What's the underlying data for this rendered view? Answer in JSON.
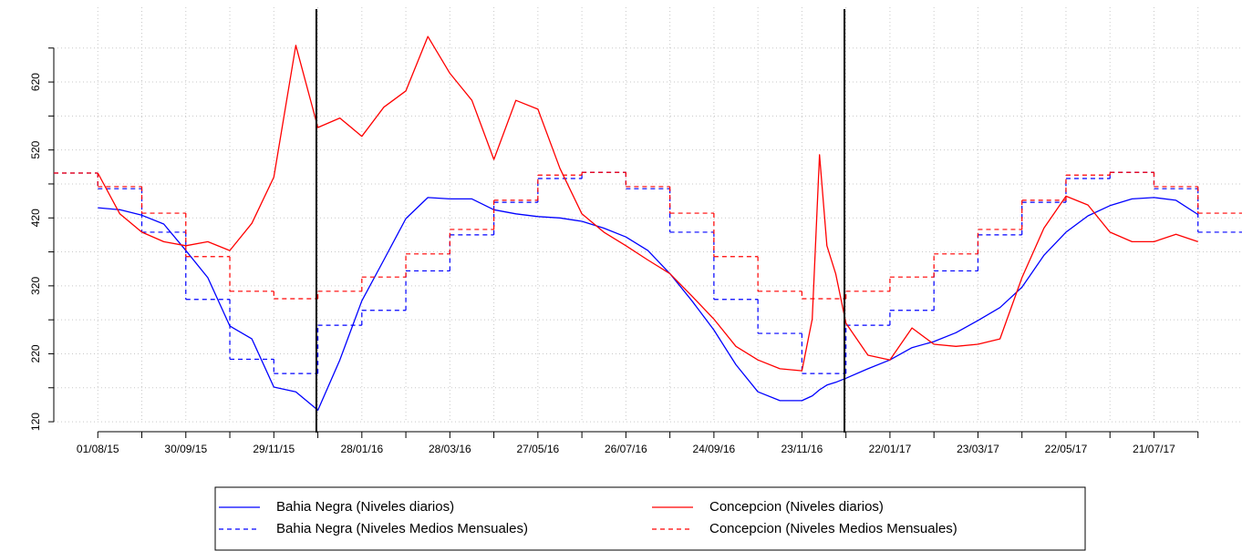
{
  "chart_data": {
    "type": "line",
    "xlim": [
      "02/07/15",
      "19/09/17"
    ],
    "ylim": [
      104,
      730
    ],
    "grid": true,
    "legend": "bottom",
    "xticks": [
      "01/08/15",
      "30/09/15",
      "29/11/15",
      "28/01/16",
      "28/03/16",
      "27/05/16",
      "26/07/16",
      "24/09/16",
      "23/11/16",
      "22/01/17",
      "23/03/17",
      "22/05/17",
      "21/07/17"
    ],
    "minor_xticks": [
      "31/08/15",
      "30/10/15",
      "29/12/15",
      "27/02/16",
      "27/04/16",
      "26/06/16",
      "25/08/16",
      "24/10/16",
      "23/12/16",
      "21/02/17",
      "22/04/17",
      "21/06/17",
      "20/08/17"
    ],
    "yticks": [
      120,
      220,
      320,
      420,
      520,
      620
    ],
    "ygrid": [
      120,
      170,
      220,
      270,
      320,
      370,
      420,
      470,
      520,
      570,
      620,
      670
    ],
    "vlines": [
      "28/12/15",
      "22/12/16"
    ],
    "vline_color": "#000000",
    "x": [
      "01/08/15",
      "16/08/15",
      "31/08/15",
      "15/09/15",
      "30/09/15",
      "15/10/15",
      "30/10/15",
      "14/11/15",
      "29/11/15",
      "14/12/15",
      "29/12/15",
      "13/01/16",
      "28/01/16",
      "12/02/16",
      "27/02/16",
      "13/03/16",
      "28/03/16",
      "12/04/16",
      "27/04/16",
      "12/05/16",
      "27/05/16",
      "11/06/16",
      "26/06/16",
      "11/07/16",
      "26/07/16",
      "10/08/16",
      "25/08/16",
      "09/09/16",
      "24/09/16",
      "09/10/16",
      "24/10/16",
      "08/11/16",
      "23/11/16",
      "30/11/16",
      "05/12/16",
      "10/12/16",
      "16/12/16",
      "23/12/16",
      "07/01/17",
      "22/01/17",
      "06/02/17",
      "21/02/17",
      "08/03/17",
      "23/03/17",
      "07/04/17",
      "22/04/17",
      "07/05/17",
      "22/05/17",
      "06/06/17",
      "21/06/17",
      "06/07/17",
      "21/07/17",
      "05/08/17",
      "20/08/17"
    ],
    "series": [
      {
        "name": "Bahia Negra (Niveles diarios)",
        "color": "#0000ff",
        "dashed": false,
        "values": [
          435,
          432,
          424,
          411,
          372,
          332,
          261,
          242,
          171,
          164,
          137,
          211,
          298,
          358,
          419,
          450,
          448,
          448,
          432,
          426,
          422,
          420,
          415,
          405,
          392,
          372,
          338,
          298,
          255,
          204,
          164,
          151,
          151,
          158,
          167,
          174,
          178,
          184,
          198,
          211,
          229,
          238,
          251,
          269,
          288,
          318,
          365,
          399,
          423,
          438,
          448,
          450,
          446,
          425
        ]
      },
      {
        "name": "Bahia Negra (Niveles Medios Mensuales)",
        "color": "#0000ff",
        "dashed": true,
        "step": true,
        "x": [
          "02/07/15",
          "01/08/15",
          "31/08/15",
          "30/09/15",
          "30/10/15",
          "29/11/15",
          "29/12/15",
          "28/01/16",
          "27/02/16",
          "28/03/16",
          "27/04/16",
          "27/05/16",
          "26/06/16",
          "26/07/16",
          "25/08/16",
          "24/09/16",
          "24/10/16",
          "23/11/16",
          "23/12/16",
          "22/01/17",
          "21/02/17",
          "23/03/17",
          "22/04/17",
          "22/05/17",
          "21/06/17",
          "21/07/17",
          "20/08/17"
        ],
        "values": [
          486,
          463,
          399,
          300,
          212,
          191,
          262,
          284,
          342,
          395,
          443,
          478,
          487,
          463,
          399,
          300,
          250,
          191,
          262,
          284,
          342,
          395,
          443,
          478,
          487,
          463,
          399
        ]
      },
      {
        "name": "Concepcion (Niveles diarios)",
        "color": "#ff0000",
        "dashed": false,
        "values": [
          486,
          426,
          399,
          385,
          379,
          385,
          372,
          412,
          480,
          674,
          553,
          567,
          540,
          583,
          607,
          687,
          633,
          593,
          506,
          593,
          580,
          493,
          426,
          399,
          379,
          358,
          338,
          305,
          271,
          231,
          211,
          198,
          195,
          271,
          513,
          379,
          338,
          265,
          218,
          211,
          258,
          234,
          231,
          234,
          242,
          332,
          405,
          452,
          439,
          399,
          385,
          385,
          396,
          385
        ]
      },
      {
        "name": "Concepcion (Niveles Medios Mensuales)",
        "color": "#ff0000",
        "dashed": true,
        "step": true,
        "x": [
          "02/07/15",
          "01/08/15",
          "31/08/15",
          "30/09/15",
          "30/10/15",
          "29/11/15",
          "29/12/15",
          "28/01/16",
          "27/02/16",
          "28/03/16",
          "27/04/16",
          "27/05/16",
          "26/06/16",
          "26/07/16",
          "25/08/16",
          "24/09/16",
          "24/10/16",
          "23/11/16",
          "23/12/16",
          "22/01/17",
          "21/02/17",
          "23/03/17",
          "22/04/17",
          "22/05/17",
          "21/06/17",
          "21/07/17",
          "20/08/17"
        ],
        "values": [
          486,
          466,
          427,
          363,
          312,
          301,
          312,
          333,
          367,
          403,
          446,
          483,
          487,
          466,
          427,
          363,
          312,
          301,
          312,
          333,
          367,
          403,
          446,
          483,
          487,
          466,
          427
        ]
      }
    ]
  }
}
